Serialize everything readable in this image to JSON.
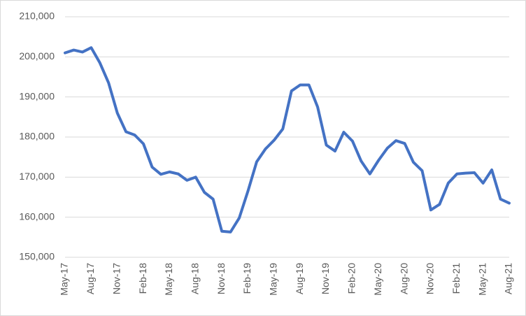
{
  "chart_data": {
    "type": "line",
    "categories": [
      "May-17",
      null,
      null,
      "Aug-17",
      null,
      null,
      "Nov-17",
      null,
      null,
      "Feb-18",
      null,
      null,
      "May-18",
      null,
      null,
      "Aug-18",
      null,
      null,
      "Nov-18",
      null,
      null,
      "Feb-19",
      null,
      null,
      "May-19",
      null,
      null,
      "Aug-19",
      null,
      null,
      "Nov-19",
      null,
      null,
      "Feb-20",
      null,
      null,
      "May-20",
      null,
      null,
      "Aug-20",
      null,
      null,
      "Nov-20",
      null,
      null,
      "Feb-21",
      null,
      null,
      "May-21",
      null,
      null,
      "Aug-21"
    ],
    "series": [
      {
        "color": "#4472c4",
        "values": [
          201000,
          201700,
          201200,
          202300,
          198500,
          193500,
          186000,
          181300,
          180500,
          178300,
          172500,
          170700,
          171300,
          170800,
          169200,
          170000,
          166200,
          164500,
          156500,
          156300,
          159800,
          166500,
          173800,
          177000,
          179200,
          182000,
          191500,
          193000,
          193000,
          187500,
          178000,
          176500,
          181200,
          179000,
          174000,
          170800,
          174200,
          177200,
          179100,
          178400,
          173700,
          171600,
          161800,
          163200,
          168500,
          170800,
          171000,
          171100,
          168500,
          171800,
          164500,
          163500
        ]
      }
    ],
    "ylim": [
      150000,
      210000
    ],
    "yticks": [
      {
        "value": 150000,
        "label": "150,000"
      },
      {
        "value": 160000,
        "label": "160,000"
      },
      {
        "value": 170000,
        "label": "170,000"
      },
      {
        "value": 180000,
        "label": "180,000"
      },
      {
        "value": 190000,
        "label": "190,000"
      },
      {
        "value": 200000,
        "label": "200,000"
      },
      {
        "value": 210000,
        "label": "210,000"
      }
    ],
    "grid": true
  }
}
